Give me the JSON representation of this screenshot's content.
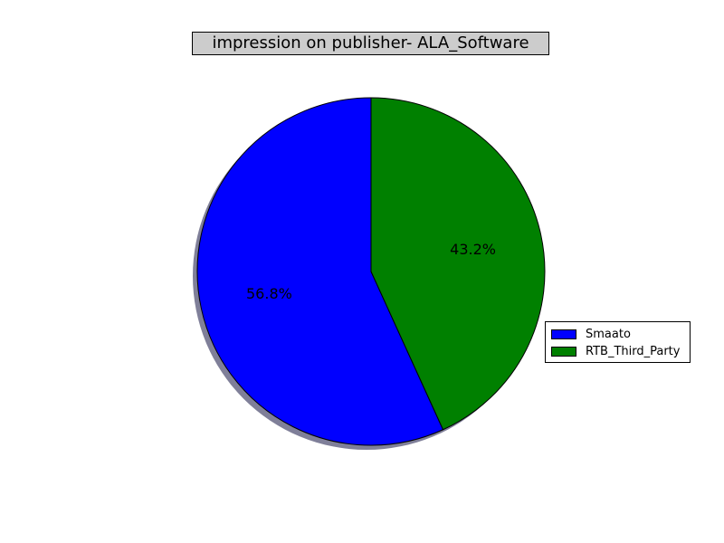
{
  "chart_data": {
    "type": "pie",
    "title": "impression on publisher- ALA_Software",
    "categories": [
      "Smaato",
      "RTB_Third_Party"
    ],
    "values": [
      56.8,
      43.2
    ],
    "labels": [
      "56.8%",
      "43.2%"
    ],
    "colors": [
      "#0000ff",
      "#008000"
    ],
    "start_angle_deg": 90,
    "direction": "counterclockwise",
    "shadow": true,
    "legend_position": "right"
  }
}
